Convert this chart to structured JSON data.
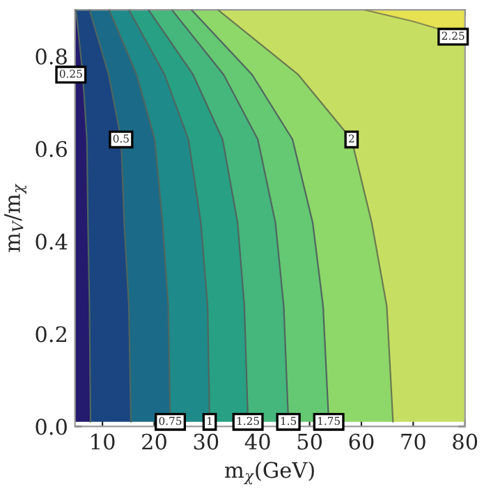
{
  "chart_data": {
    "type": "line",
    "xlabel": "m$_{χ}$(GeV)",
    "ylabel": "m$_{V}$/m$_{χ}$",
    "xlim": [
      4.7,
      80
    ],
    "ylim": [
      0,
      0.9
    ],
    "xticks": [
      10,
      20,
      30,
      40,
      50,
      60,
      70,
      80
    ],
    "yticks": [
      {
        "value": 0,
        "label": "0.0"
      },
      {
        "value": 0.2,
        "label": "0.2"
      },
      {
        "value": 0.4,
        "label": "0.4"
      },
      {
        "value": 0.6,
        "label": "0.6"
      },
      {
        "value": 0.8,
        "label": "0.8"
      }
    ],
    "colors": [
      "#241a6e",
      "#1a4580",
      "#1b6a87",
      "#1f8a8a",
      "#27a083",
      "#45b67c",
      "#65c872",
      "#8ed769",
      "#c6df62",
      "#e6e252"
    ],
    "legend": false,
    "grid": false,
    "marker": "none",
    "line_style": "solid",
    "series": [
      {
        "name": "0.25",
        "color": "#4f6660",
        "x": [
          7.7,
          7.5,
          7.2,
          7.0,
          6.2,
          4.9
        ],
        "values": [
          0.01,
          0.26,
          0.44,
          0.62,
          0.76,
          0.9
        ]
      },
      {
        "name": "0.5",
        "color": "#4f6660",
        "x": [
          15.5,
          15.1,
          14.2,
          13.6,
          11.2,
          7.5
        ],
        "values": [
          0.01,
          0.26,
          0.44,
          0.62,
          0.76,
          0.9
        ]
      },
      {
        "name": "0.75",
        "color": "#4f6660",
        "x": [
          23.1,
          22.7,
          21.6,
          20.1,
          16.6,
          11.3
        ],
        "values": [
          0.01,
          0.26,
          0.44,
          0.62,
          0.76,
          0.9
        ]
      },
      {
        "name": "1",
        "color": "#4f6660",
        "x": [
          30.7,
          30.3,
          29.0,
          26.6,
          22.0,
          15.1
        ],
        "values": [
          0.01,
          0.26,
          0.44,
          0.62,
          0.76,
          0.9
        ]
      },
      {
        "name": "1.25",
        "color": "#4f6660",
        "x": [
          38.1,
          37.4,
          36.1,
          33.2,
          27.5,
          18.9
        ],
        "values": [
          0.01,
          0.26,
          0.44,
          0.62,
          0.76,
          0.9
        ]
      },
      {
        "name": "1.5",
        "color": "#4f6660",
        "x": [
          45.9,
          45.0,
          43.4,
          40.0,
          33.4,
          23.4
        ],
        "values": [
          0.01,
          0.26,
          0.44,
          0.62,
          0.76,
          0.9
        ]
      },
      {
        "name": "1.75",
        "color": "#4f6660",
        "x": [
          53.7,
          52.6,
          50.6,
          46.7,
          38.9,
          27.2
        ],
        "values": [
          0.01,
          0.26,
          0.44,
          0.62,
          0.76,
          0.9
        ]
      },
      {
        "name": "2",
        "color": "#6a7a50",
        "x": [
          66.1,
          64.9,
          62.0,
          58.1,
          47.8,
          32.3
        ],
        "values": [
          0.01,
          0.26,
          0.44,
          0.62,
          0.76,
          0.9
        ]
      },
      {
        "name": "2.25",
        "color": "#8a8a50",
        "x": [
          60.6,
          70,
          80
        ],
        "values": [
          0.9,
          0.875,
          0.842
        ]
      }
    ]
  }
}
